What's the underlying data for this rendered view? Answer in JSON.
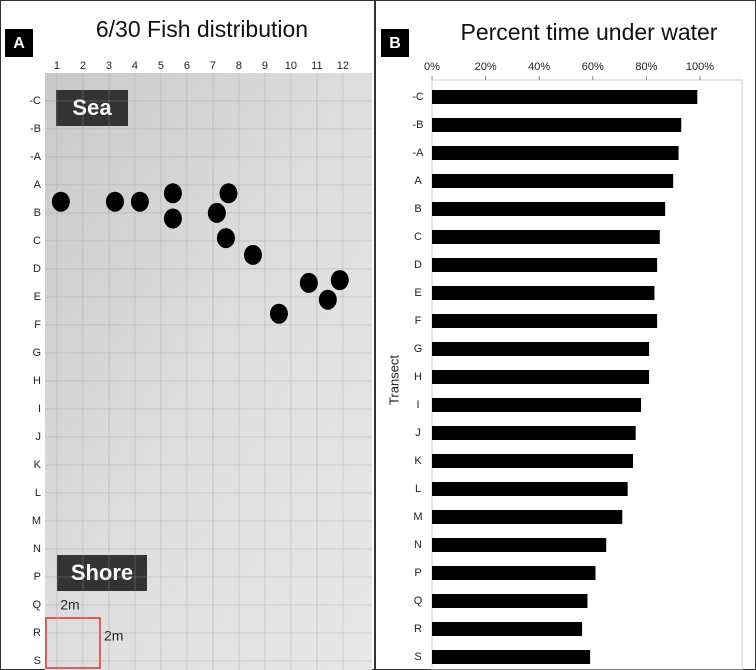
{
  "chart_data": [
    {
      "type": "scatter",
      "panel": "A",
      "title": "6/30 Fish distribution",
      "annotations": [
        "Sea",
        "Shore",
        "2m",
        "2m"
      ],
      "x": [
        1.15,
        3.23,
        4.19,
        5.46,
        5.46,
        7.6,
        7.15,
        7.5,
        8.54,
        10.69,
        11.88,
        11.42,
        9.54
      ],
      "y": [
        3.6,
        3.6,
        3.6,
        3.3,
        4.2,
        3.3,
        4.0,
        4.9,
        5.5,
        6.5,
        6.4,
        7.1,
        7.6
      ],
      "color": "#000000",
      "xlim": [
        0.54,
        13.12
      ],
      "xticks": [
        1,
        2,
        3,
        4,
        5,
        6,
        7,
        8,
        9,
        10,
        11,
        12
      ],
      "ylim": [
        20.25,
        -1.46
      ],
      "yticks": [
        {
          "value": 0,
          "label": "-C"
        },
        {
          "value": 1,
          "label": "-B"
        },
        {
          "value": 2,
          "label": "-A"
        },
        {
          "value": 3,
          "label": "A"
        },
        {
          "value": 4,
          "label": "B"
        },
        {
          "value": 5,
          "label": "C"
        },
        {
          "value": 6,
          "label": "D"
        },
        {
          "value": 7,
          "label": "E"
        },
        {
          "value": 8,
          "label": "F"
        },
        {
          "value": 9,
          "label": "G"
        },
        {
          "value": 10,
          "label": "H"
        },
        {
          "value": 11,
          "label": "I"
        },
        {
          "value": 12,
          "label": "J"
        },
        {
          "value": 13,
          "label": "K"
        },
        {
          "value": 14,
          "label": "L"
        },
        {
          "value": 15,
          "label": "M"
        },
        {
          "value": 16,
          "label": "N"
        },
        {
          "value": 17,
          "label": "P"
        },
        {
          "value": 18,
          "label": "Q"
        },
        {
          "value": 19,
          "label": "R"
        },
        {
          "value": 20,
          "label": "S"
        }
      ],
      "grid": true
    },
    {
      "type": "bar",
      "orientation": "horizontal",
      "panel": "B",
      "title": "Percent time under water",
      "ylabel": "Transect",
      "categories": [
        "-C",
        "-B",
        "-A",
        "A",
        "B",
        "C",
        "D",
        "E",
        "F",
        "G",
        "H",
        "I",
        "J",
        "K",
        "L",
        "M",
        "N",
        "P",
        "Q",
        "R",
        "S"
      ],
      "values": [
        99,
        93,
        92,
        90,
        87,
        85,
        84,
        83,
        84,
        81,
        81,
        78,
        76,
        75,
        73,
        71,
        65,
        61,
        58,
        56,
        59
      ],
      "color": "#000000",
      "xlim": [
        0,
        100
      ],
      "xticks": [
        {
          "value": 0,
          "label": "0%"
        },
        {
          "value": 20,
          "label": "20%"
        },
        {
          "value": 40,
          "label": "40%"
        },
        {
          "value": 60,
          "label": "60%"
        },
        {
          "value": 80,
          "label": "80%"
        },
        {
          "value": 100,
          "label": "100%"
        }
      ]
    }
  ]
}
